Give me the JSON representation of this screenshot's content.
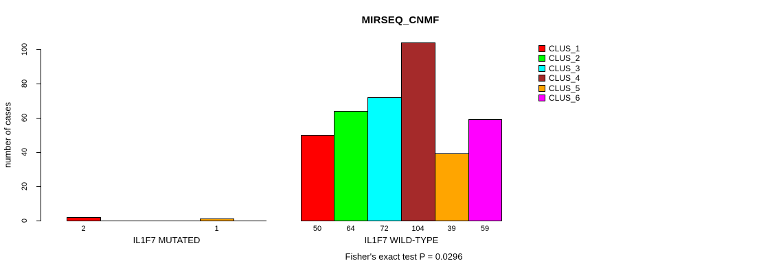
{
  "title": "MIRSEQ_CNMF",
  "chart_data": {
    "type": "bar",
    "title": "MIRSEQ_CNMF",
    "ylabel": "number of cases",
    "ylim": [
      0,
      100
    ],
    "yticks": [
      0,
      20,
      40,
      60,
      80,
      100
    ],
    "grid": false,
    "legend_position": "right",
    "clusters": [
      {
        "name": "CLUS_1",
        "color": "#FF0000"
      },
      {
        "name": "CLUS_2",
        "color": "#00FF00"
      },
      {
        "name": "CLUS_3",
        "color": "#00FFFF"
      },
      {
        "name": "CLUS_4",
        "color": "#A52A2A"
      },
      {
        "name": "CLUS_5",
        "color": "#FFA500"
      },
      {
        "name": "CLUS_6",
        "color": "#FF00FF"
      }
    ],
    "groups": [
      {
        "label": "IL1F7 MUTATED",
        "values": [
          2,
          0,
          0,
          0,
          1,
          0
        ]
      },
      {
        "label": "IL1F7 WILD-TYPE",
        "values": [
          50,
          64,
          72,
          104,
          39,
          59
        ]
      }
    ],
    "annotation": "Fisher's exact test P = 0.0296"
  }
}
